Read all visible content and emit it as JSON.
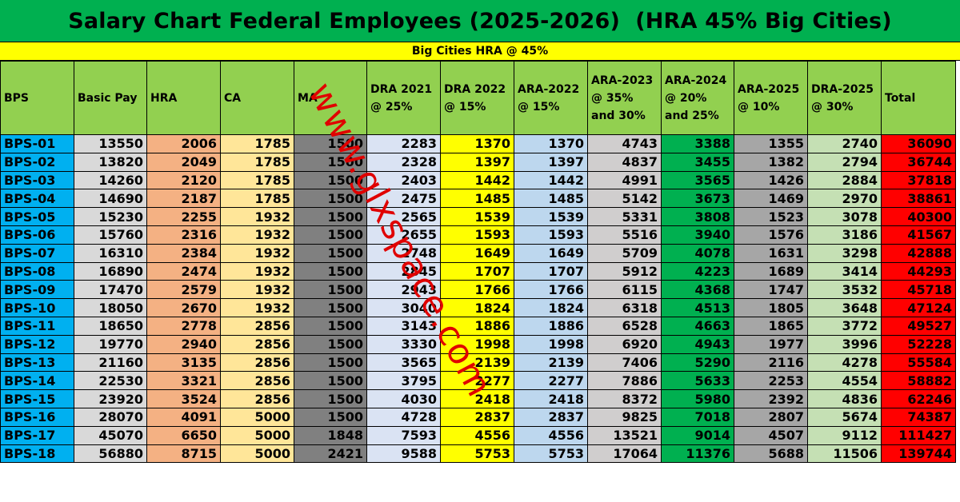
{
  "title": "Salary Chart Federal Employees (2025-2026)  (HRA 45% Big Cities)",
  "subtitle": "Big Cities HRA @ 45%",
  "watermark": "www.glxspace.com",
  "colors": {
    "title_bg": "#00b050",
    "subtitle_bg": "#ffff00",
    "header_bg": "#92d050",
    "bps": "#00b0f0",
    "total": "#ff0000"
  },
  "columns": [
    "BPS",
    "Basic Pay",
    "HRA",
    "CA",
    "MA",
    "DRA 2021 @ 25%",
    "DRA 2022 @ 15%",
    "ARA-2022 @ 15%",
    "ARA-2023 @ 35% and 30%",
    "ARA-2024 @ 20% and 25%",
    "ARA-2025 @ 10%",
    "DRA-2025 @ 30%",
    "Total"
  ],
  "rows": [
    [
      "BPS-01",
      "13550",
      "2006",
      "1785",
      "1500",
      "2283",
      "1370",
      "1370",
      "4743",
      "3388",
      "1355",
      "2740",
      "36090"
    ],
    [
      "BPS-02",
      "13820",
      "2049",
      "1785",
      "1500",
      "2328",
      "1397",
      "1397",
      "4837",
      "3455",
      "1382",
      "2794",
      "36744"
    ],
    [
      "BPS-03",
      "14260",
      "2120",
      "1785",
      "1500",
      "2403",
      "1442",
      "1442",
      "4991",
      "3565",
      "1426",
      "2884",
      "37818"
    ],
    [
      "BPS-04",
      "14690",
      "2187",
      "1785",
      "1500",
      "2475",
      "1485",
      "1485",
      "5142",
      "3673",
      "1469",
      "2970",
      "38861"
    ],
    [
      "BPS-05",
      "15230",
      "2255",
      "1932",
      "1500",
      "2565",
      "1539",
      "1539",
      "5331",
      "3808",
      "1523",
      "3078",
      "40300"
    ],
    [
      "BPS-06",
      "15760",
      "2316",
      "1932",
      "1500",
      "2655",
      "1593",
      "1593",
      "5516",
      "3940",
      "1576",
      "3186",
      "41567"
    ],
    [
      "BPS-07",
      "16310",
      "2384",
      "1932",
      "1500",
      "2748",
      "1649",
      "1649",
      "5709",
      "4078",
      "1631",
      "3298",
      "42888"
    ],
    [
      "BPS-08",
      "16890",
      "2474",
      "1932",
      "1500",
      "2845",
      "1707",
      "1707",
      "5912",
      "4223",
      "1689",
      "3414",
      "44293"
    ],
    [
      "BPS-09",
      "17470",
      "2579",
      "1932",
      "1500",
      "2943",
      "1766",
      "1766",
      "6115",
      "4368",
      "1747",
      "3532",
      "45718"
    ],
    [
      "BPS-10",
      "18050",
      "2670",
      "1932",
      "1500",
      "3040",
      "1824",
      "1824",
      "6318",
      "4513",
      "1805",
      "3648",
      "47124"
    ],
    [
      "BPS-11",
      "18650",
      "2778",
      "2856",
      "1500",
      "3143",
      "1886",
      "1886",
      "6528",
      "4663",
      "1865",
      "3772",
      "49527"
    ],
    [
      "BPS-12",
      "19770",
      "2940",
      "2856",
      "1500",
      "3330",
      "1998",
      "1998",
      "6920",
      "4943",
      "1977",
      "3996",
      "52228"
    ],
    [
      "BPS-13",
      "21160",
      "3135",
      "2856",
      "1500",
      "3565",
      "2139",
      "2139",
      "7406",
      "5290",
      "2116",
      "4278",
      "55584"
    ],
    [
      "BPS-14",
      "22530",
      "3321",
      "2856",
      "1500",
      "3795",
      "2277",
      "2277",
      "7886",
      "5633",
      "2253",
      "4554",
      "58882"
    ],
    [
      "BPS-15",
      "23920",
      "3524",
      "2856",
      "1500",
      "4030",
      "2418",
      "2418",
      "8372",
      "5980",
      "2392",
      "4836",
      "62246"
    ],
    [
      "BPS-16",
      "28070",
      "4091",
      "5000",
      "1500",
      "4728",
      "2837",
      "2837",
      "9825",
      "7018",
      "2807",
      "5674",
      "74387"
    ],
    [
      "BPS-17",
      "45070",
      "6650",
      "5000",
      "1848",
      "7593",
      "4556",
      "4556",
      "13521",
      "9014",
      "4507",
      "9112",
      "111427"
    ],
    [
      "BPS-18",
      "56880",
      "8715",
      "5000",
      "2421",
      "9588",
      "5753",
      "5753",
      "17064",
      "11376",
      "5688",
      "11506",
      "139744"
    ]
  ]
}
